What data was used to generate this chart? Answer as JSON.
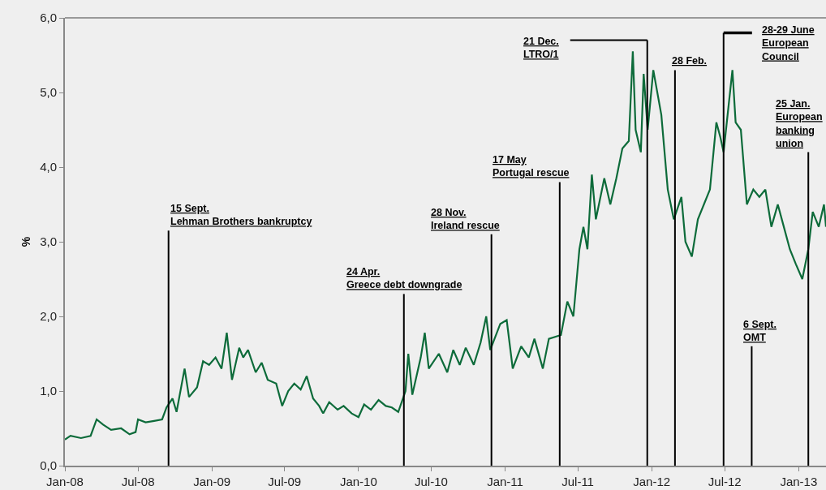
{
  "chart_data": {
    "type": "line",
    "ylabel": "%",
    "x": [
      "2008-01-01",
      "2008-01-15",
      "2008-02-10",
      "2008-03-05",
      "2008-03-20",
      "2008-04-05",
      "2008-04-25",
      "2008-05-20",
      "2008-06-10",
      "2008-06-25",
      "2008-07-01",
      "2008-07-20",
      "2008-08-10",
      "2008-08-30",
      "2008-09-10",
      "2008-09-25",
      "2008-10-05",
      "2008-10-25",
      "2008-11-05",
      "2008-11-25",
      "2008-12-10",
      "2008-12-25",
      "2009-01-10",
      "2009-01-25",
      "2009-02-07",
      "2009-02-20",
      "2009-03-10",
      "2009-03-20",
      "2009-04-01",
      "2009-04-20",
      "2009-05-05",
      "2009-05-20",
      "2009-06-10",
      "2009-06-25",
      "2009-07-10",
      "2009-07-25",
      "2009-08-10",
      "2009-08-25",
      "2009-09-10",
      "2009-09-25",
      "2009-10-05",
      "2009-10-20",
      "2009-11-10",
      "2009-11-25",
      "2009-12-15",
      "2010-01-01",
      "2010-01-15",
      "2010-02-01",
      "2010-02-20",
      "2010-03-10",
      "2010-03-25",
      "2010-04-10",
      "2010-04-28",
      "2010-05-05",
      "2010-05-15",
      "2010-06-05",
      "2010-06-15",
      "2010-06-25",
      "2010-07-20",
      "2010-08-10",
      "2010-08-25",
      "2010-09-10",
      "2010-09-25",
      "2010-10-15",
      "2010-11-01",
      "2010-11-15",
      "2010-11-25",
      "2010-12-20",
      "2011-01-05",
      "2011-01-20",
      "2011-02-10",
      "2011-03-01",
      "2011-03-15",
      "2011-04-05",
      "2011-04-20",
      "2011-05-20",
      "2011-06-05",
      "2011-06-20",
      "2011-07-05",
      "2011-07-15",
      "2011-07-25",
      "2011-08-05",
      "2011-08-15",
      "2011-09-05",
      "2011-09-20",
      "2011-10-05",
      "2011-10-20",
      "2011-11-05",
      "2011-11-15",
      "2011-11-22",
      "2011-12-05",
      "2011-12-12",
      "2011-12-22",
      "2012-01-05",
      "2012-01-25",
      "2012-02-10",
      "2012-02-25",
      "2012-03-15",
      "2012-03-25",
      "2012-04-10",
      "2012-04-25",
      "2012-05-10",
      "2012-05-25",
      "2012-06-10",
      "2012-06-20",
      "2012-06-28",
      "2012-07-10",
      "2012-07-20",
      "2012-07-28",
      "2012-08-10",
      "2012-08-25",
      "2012-09-10",
      "2012-09-25",
      "2012-10-10",
      "2012-10-25",
      "2012-11-10",
      "2012-11-25",
      "2012-12-10",
      "2012-12-25",
      "2013-01-10",
      "2013-01-25",
      "2013-02-05",
      "2013-02-20",
      "2013-03-05",
      "2013-03-10"
    ],
    "series": [
      {
        "color": "#0d6b3a",
        "values": [
          0.35,
          0.4,
          0.37,
          0.4,
          0.62,
          0.55,
          0.48,
          0.5,
          0.42,
          0.45,
          0.62,
          0.58,
          0.6,
          0.62,
          0.78,
          0.9,
          0.72,
          1.3,
          0.92,
          1.05,
          1.4,
          1.35,
          1.45,
          1.3,
          1.78,
          1.15,
          1.58,
          1.45,
          1.55,
          1.25,
          1.38,
          1.15,
          1.1,
          0.8,
          1.0,
          1.1,
          1.02,
          1.2,
          0.9,
          0.8,
          0.7,
          0.85,
          0.75,
          0.8,
          0.7,
          0.65,
          0.82,
          0.75,
          0.88,
          0.8,
          0.78,
          0.72,
          1.0,
          1.5,
          0.95,
          1.45,
          1.78,
          1.3,
          1.5,
          1.25,
          1.55,
          1.35,
          1.58,
          1.35,
          1.65,
          2.0,
          1.55,
          1.9,
          1.95,
          1.3,
          1.6,
          1.45,
          1.7,
          1.3,
          1.7,
          1.75,
          2.2,
          2.0,
          2.9,
          3.2,
          2.9,
          3.9,
          3.3,
          3.85,
          3.5,
          3.85,
          4.25,
          4.35,
          5.55,
          4.5,
          4.2,
          5.25,
          4.5,
          5.3,
          4.7,
          3.7,
          3.3,
          3.6,
          3.0,
          2.8,
          3.3,
          3.5,
          3.7,
          4.6,
          4.4,
          4.2,
          4.8,
          5.3,
          4.6,
          4.5,
          3.5,
          3.7,
          3.6,
          3.7,
          3.2,
          3.5,
          3.2,
          2.9,
          2.7,
          2.5,
          2.9,
          3.4,
          3.2,
          3.5,
          3.2
        ]
      }
    ],
    "xlim": [
      "2008-01-01",
      "2013-03-10"
    ],
    "xticks": [
      {
        "value": "2008-01-01",
        "label": "Jan-08"
      },
      {
        "value": "2008-07-01",
        "label": "Jul-08"
      },
      {
        "value": "2009-01-01",
        "label": "Jan-09"
      },
      {
        "value": "2009-07-01",
        "label": "Jul-09"
      },
      {
        "value": "2010-01-01",
        "label": "Jan-10"
      },
      {
        "value": "2010-07-01",
        "label": "Jul-10"
      },
      {
        "value": "2011-01-01",
        "label": "Jan-11"
      },
      {
        "value": "2011-07-01",
        "label": "Jul-11"
      },
      {
        "value": "2012-01-01",
        "label": "Jan-12"
      },
      {
        "value": "2012-07-01",
        "label": "Jul-12"
      },
      {
        "value": "2013-01-01",
        "label": "Jan-13"
      }
    ],
    "ylim": [
      0,
      6
    ],
    "yticks": [
      {
        "value": 0,
        "label": "0,0"
      },
      {
        "value": 1,
        "label": "1,0"
      },
      {
        "value": 2,
        "label": "2,0"
      },
      {
        "value": 3,
        "label": "3,0"
      },
      {
        "value": 4,
        "label": "4,0"
      },
      {
        "value": 5,
        "label": "5,0"
      },
      {
        "value": 6,
        "label": "6,0"
      }
    ],
    "ref_lines": [
      {
        "axis": "x",
        "value": "2008-09-15",
        "label": "15 Sept.\nLehman Brothers bankruptcy",
        "color": "#000000"
      },
      {
        "axis": "x",
        "value": "2010-04-24",
        "label": "24 Apr.\nGreece debt downgrade",
        "color": "#000000"
      },
      {
        "axis": "x",
        "value": "2010-11-28",
        "label": "28 Nov.\nIreland rescue",
        "color": "#000000"
      },
      {
        "axis": "x",
        "value": "2011-05-17",
        "label": "17 May\nPortugal rescue",
        "color": "#000000"
      },
      {
        "axis": "x",
        "value": "2011-12-21",
        "label": "21 Dec.\nLTRO/1",
        "color": "#000000"
      },
      {
        "axis": "x",
        "value": "2012-02-28",
        "label": "28 Feb.",
        "color": "#000000"
      },
      {
        "axis": "x",
        "value": "2012-06-28",
        "label": "28-29 June\nEuropean\nCouncil",
        "color": "#000000"
      },
      {
        "axis": "x",
        "value": "2012-09-06",
        "label": "6 Sept.\nOMT",
        "color": "#000000"
      },
      {
        "axis": "x",
        "value": "2013-01-25",
        "label": "25 Jan.\nEuropean\nbanking\nunion",
        "color": "#000000"
      }
    ],
    "grid": false,
    "line_style": "solid",
    "marker": "none"
  }
}
